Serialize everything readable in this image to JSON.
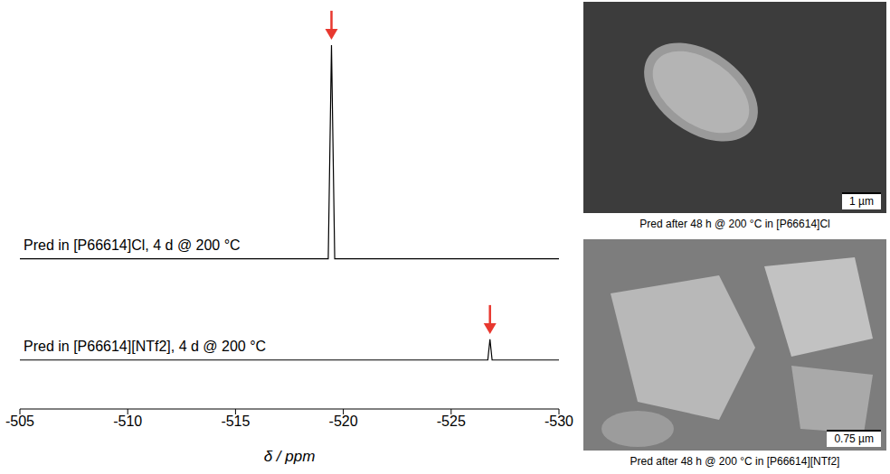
{
  "chart_data": {
    "type": "line",
    "x_label": "δ / ppm",
    "xlim": [
      -505,
      -530
    ],
    "xticks": [
      -505,
      -510,
      -515,
      -520,
      -525,
      -530
    ],
    "ylim": [
      0,
      10
    ],
    "tick_labels": "x",
    "grid": false,
    "series": [
      {
        "name": "Pred in [P66614]Cl, 4 d @ 200 °C",
        "color": "#000000",
        "x": [
          -505,
          -519.3,
          -519.45,
          -519.6,
          -530
        ],
        "values": [
          4.08,
          4.08,
          9.88,
          4.08,
          4.08
        ]
      },
      {
        "name": "Pred in [P66614][NTf2], 4 d @ 200 °C",
        "color": "#000000",
        "x": [
          -505,
          -526.7,
          -526.8,
          -526.9,
          -530
        ],
        "values": [
          1.33,
          1.33,
          1.89,
          1.33,
          1.33
        ]
      }
    ]
  },
  "images": [
    {
      "caption": "Pred after 48 h @ 200 °C in [P66614]Cl",
      "scale_bar": "1 µm"
    },
    {
      "caption": "Pred after 48 h @ 200 °C in [P66614][NTf2]",
      "scale_bar": "0.75 µm"
    }
  ]
}
